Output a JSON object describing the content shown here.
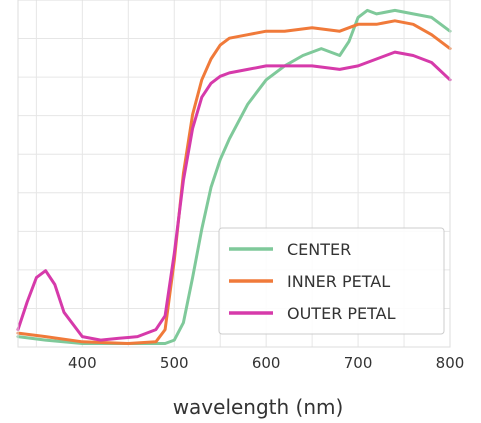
{
  "chart_data": {
    "type": "line",
    "xlabel": "wavelength (nm)",
    "ylabel": "",
    "xlim": [
      330,
      800
    ],
    "ylim": [
      0,
      1
    ],
    "xticks": [
      400,
      500,
      600,
      700,
      800
    ],
    "yticks_gridlines": 9,
    "grid": true,
    "legend_position": "lower-right",
    "series": [
      {
        "name": "CENTER",
        "color": "#7fc99a",
        "x": [
          330,
          360,
          400,
          450,
          490,
          500,
          510,
          520,
          530,
          540,
          550,
          560,
          580,
          600,
          620,
          640,
          660,
          680,
          690,
          700,
          710,
          720,
          740,
          760,
          780,
          800
        ],
        "y": [
          0.03,
          0.02,
          0.01,
          0.01,
          0.01,
          0.02,
          0.07,
          0.2,
          0.34,
          0.46,
          0.54,
          0.6,
          0.7,
          0.77,
          0.81,
          0.84,
          0.86,
          0.84,
          0.88,
          0.95,
          0.97,
          0.96,
          0.97,
          0.96,
          0.95,
          0.91
        ]
      },
      {
        "name": "INNER PETAL",
        "color": "#f07a3a",
        "x": [
          330,
          360,
          400,
          450,
          480,
          490,
          500,
          510,
          520,
          530,
          540,
          550,
          560,
          580,
          600,
          620,
          650,
          680,
          700,
          720,
          740,
          760,
          780,
          800
        ],
        "y": [
          0.04,
          0.03,
          0.015,
          0.01,
          0.015,
          0.05,
          0.25,
          0.5,
          0.67,
          0.77,
          0.83,
          0.87,
          0.89,
          0.9,
          0.91,
          0.91,
          0.92,
          0.91,
          0.93,
          0.93,
          0.94,
          0.93,
          0.9,
          0.86
        ]
      },
      {
        "name": "OUTER PETAL",
        "color": "#d63aaa",
        "x": [
          330,
          340,
          350,
          360,
          370,
          380,
          400,
          420,
          440,
          460,
          470,
          480,
          490,
          500,
          510,
          520,
          530,
          540,
          550,
          560,
          580,
          600,
          620,
          650,
          680,
          700,
          720,
          740,
          760,
          780,
          800
        ],
        "y": [
          0.05,
          0.13,
          0.2,
          0.22,
          0.18,
          0.1,
          0.03,
          0.02,
          0.025,
          0.03,
          0.04,
          0.05,
          0.09,
          0.27,
          0.48,
          0.63,
          0.72,
          0.76,
          0.78,
          0.79,
          0.8,
          0.81,
          0.81,
          0.81,
          0.8,
          0.81,
          0.83,
          0.85,
          0.84,
          0.82,
          0.77
        ]
      }
    ]
  }
}
